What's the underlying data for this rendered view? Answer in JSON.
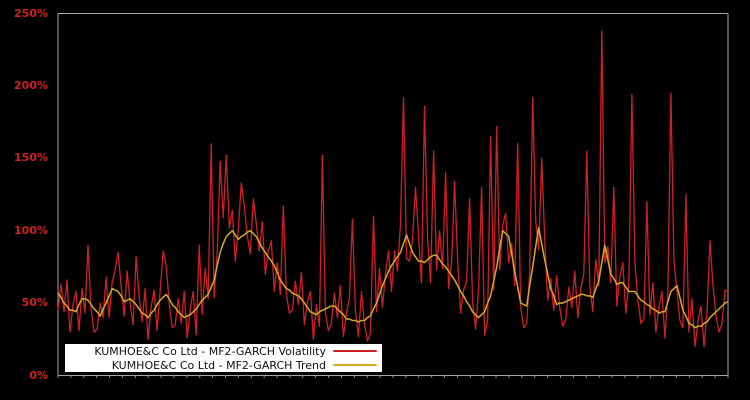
{
  "figure": {
    "background_color": "#000000",
    "plot_border_color": "#a6a6a6",
    "tick_color": "#8a8a8a"
  },
  "y_axis": {
    "labels": [
      "0%",
      "50%",
      "100%",
      "150%",
      "200%",
      "250%"
    ],
    "label_color": "#cc2121",
    "min": 0,
    "max": 250
  },
  "legend": {
    "entries": [
      {
        "label": "KUMHOE&C Co Ltd - MF2-GARCH Volatility",
        "color": "#d11f26"
      },
      {
        "label": "KUMHOE&C Co Ltd - MF2-GARCH Trend",
        "color": "#d4a928"
      }
    ],
    "background": "#ffffff",
    "position": "lower-left"
  },
  "chart_data": {
    "type": "line",
    "title": "",
    "xlabel": "",
    "ylabel": "",
    "y_unit": "percent",
    "ylim": [
      0,
      250
    ],
    "grid": false,
    "legend_position": "lower-left",
    "x_axis_labels_visible": false,
    "series": [
      {
        "name": "KUMHOE&C Co Ltd - MF2-GARCH Volatility",
        "color": "#d11f26",
        "stroke_width": 1.3,
        "values": [
          45,
          63,
          44,
          66,
          30,
          49,
          58,
          31,
          60,
          43,
          90,
          46,
          30,
          32,
          50,
          40,
          68,
          40,
          64,
          73,
          85,
          62,
          41,
          72,
          50,
          35,
          82,
          55,
          37,
          60,
          25,
          47,
          59,
          31,
          59,
          86,
          76,
          50,
          33,
          35,
          53,
          36,
          58,
          26,
          46,
          58,
          28,
          90,
          42,
          74,
          53,
          160,
          54,
          85,
          148,
          109,
          152,
          102,
          114,
          79,
          101,
          133,
          117,
          96,
          84,
          122,
          105,
          86,
          106,
          70,
          86,
          93,
          58,
          78,
          56,
          117,
          57,
          43,
          45,
          65,
          49,
          71,
          35,
          51,
          58,
          25,
          49,
          34,
          152,
          43,
          31,
          36,
          57,
          40,
          62,
          27,
          43,
          53,
          108,
          45,
          27,
          58,
          35,
          24,
          29,
          110,
          44,
          74,
          47,
          71,
          86,
          58,
          86,
          72,
          105,
          192,
          81,
          79,
          94,
          130,
          97,
          64,
          186,
          94,
          64,
          155,
          73,
          100,
          74,
          140,
          60,
          78,
          134,
          80,
          43,
          59,
          65,
          122,
          51,
          32,
          60,
          130,
          28,
          38,
          165,
          59,
          172,
          73,
          104,
          112,
          78,
          91,
          62,
          160,
          47,
          33,
          36,
          71,
          192,
          107,
          87,
          150,
          94,
          52,
          67,
          45,
          69,
          47,
          34,
          39,
          61,
          47,
          72,
          40,
          60,
          70,
          155,
          62,
          44,
          80,
          62,
          238,
          78,
          89,
          64,
          130,
          48,
          68,
          78,
          43,
          65,
          194,
          78,
          52,
          36,
          39,
          120,
          42,
          64,
          30,
          47,
          58,
          26,
          58,
          195,
          80,
          59,
          38,
          33,
          125,
          30,
          53,
          20,
          38,
          48,
          20,
          44,
          93,
          62,
          41,
          30,
          36,
          59,
          58
        ]
      },
      {
        "name": "KUMHOE&C Co Ltd - MF2-GARCH Trend",
        "color": "#d4a928",
        "stroke_width": 1.5,
        "values": [
          57,
          54,
          50,
          48,
          45,
          45,
          44,
          49,
          53,
          53,
          52,
          49,
          46,
          44,
          41,
          46,
          50,
          55,
          60,
          59,
          58,
          55,
          51,
          52,
          53,
          51,
          49,
          46,
          43,
          42,
          40,
          43,
          45,
          49,
          52,
          54,
          56,
          53,
          49,
          47,
          44,
          42,
          40,
          41,
          42,
          44,
          46,
          49,
          52,
          54,
          56,
          61,
          66,
          76,
          85,
          91,
          96,
          98,
          100,
          97,
          94,
          96,
          97,
          99,
          100,
          98,
          96,
          92,
          88,
          85,
          82,
          79,
          76,
          71,
          66,
          63,
          60,
          59,
          57,
          56,
          55,
          53,
          50,
          47,
          44,
          43,
          42,
          44,
          45,
          46,
          47,
          48,
          48,
          46,
          44,
          42,
          39,
          39,
          38,
          38,
          37,
          38,
          38,
          40,
          41,
          46,
          50,
          56,
          62,
          67,
          72,
          76,
          79,
          82,
          85,
          91,
          97,
          91,
          85,
          82,
          79,
          79,
          78,
          80,
          82,
          83,
          83,
          80,
          77,
          75,
          72,
          69,
          66,
          62,
          58,
          55,
          51,
          48,
          44,
          42,
          40,
          42,
          44,
          50,
          55,
          65,
          75,
          88,
          100,
          98,
          96,
          84,
          72,
          61,
          50,
          49,
          48,
          62,
          75,
          89,
          102,
          91,
          80,
          70,
          60,
          55,
          49,
          50,
          50,
          51,
          52,
          53,
          54,
          55,
          56,
          56,
          55,
          55,
          54,
          60,
          65,
          78,
          90,
          80,
          70,
          67,
          63,
          64,
          64,
          61,
          58,
          58,
          58,
          55,
          52,
          51,
          49,
          48,
          46,
          45,
          43,
          44,
          44,
          51,
          58,
          60,
          62,
          54,
          45,
          41,
          36,
          35,
          33,
          34,
          34,
          36,
          37,
          40,
          42,
          44,
          46,
          48,
          50,
          51
        ]
      }
    ]
  }
}
